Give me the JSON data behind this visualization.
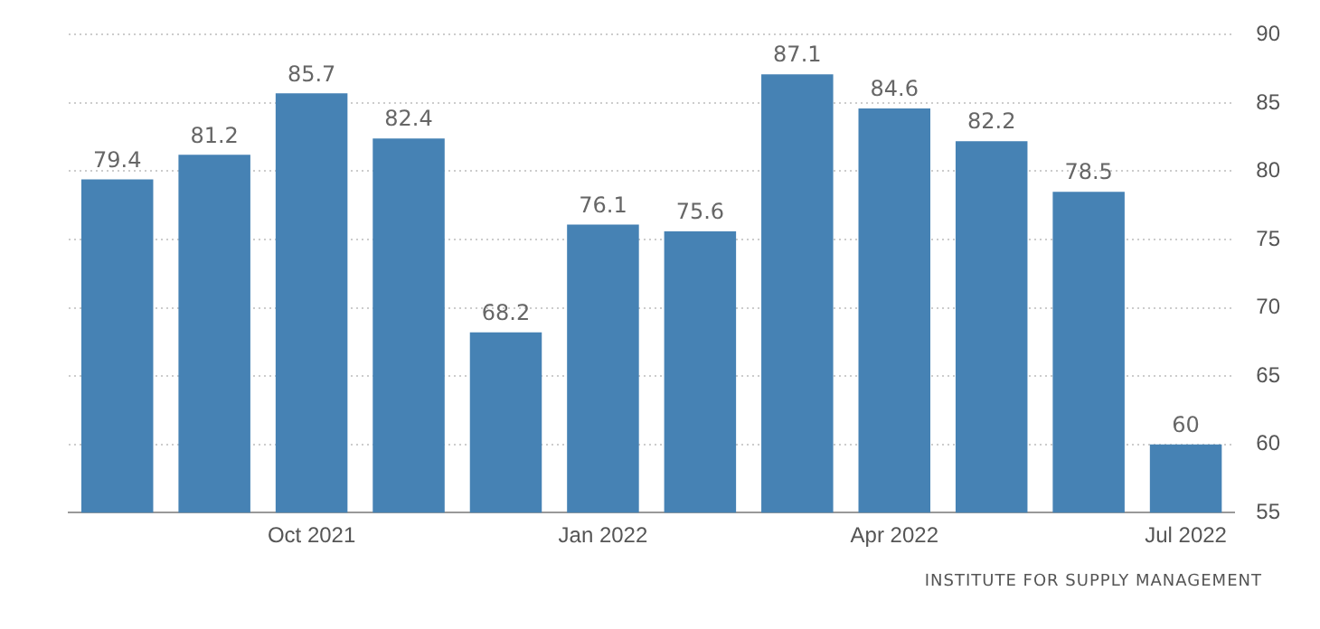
{
  "chart_data": {
    "type": "bar",
    "categories": [
      null,
      null,
      "Oct 2021",
      null,
      null,
      "Jan 2022",
      null,
      null,
      "Apr 2022",
      null,
      null,
      "Jul 2022"
    ],
    "values": [
      79.4,
      81.2,
      85.7,
      82.4,
      68.2,
      76.1,
      75.6,
      87.1,
      84.6,
      82.2,
      78.5,
      60
    ],
    "color": "#4682b4",
    "ylim": [
      55,
      90
    ],
    "yticks": [
      55,
      60,
      65,
      70,
      75,
      80,
      85,
      90
    ],
    "grid": "y",
    "data_labels": true,
    "annotations": [
      "INSTITUTE FOR SUPPLY MANAGEMENT"
    ]
  }
}
